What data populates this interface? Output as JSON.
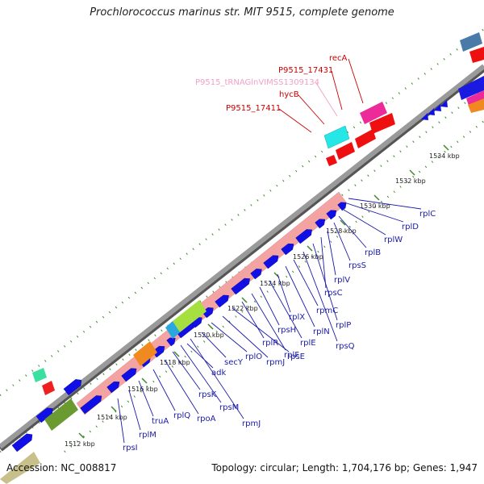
{
  "title": "Prochlorococcus marinus str. MIT 9515, complete genome",
  "footer": {
    "accession": "Accession: NC_008817",
    "summary": "Topology: circular; Length: 1,704,176 bp; Genes: 1,947"
  },
  "colors": {
    "backbone": "#8a8a8a",
    "tick": "#3a8a2a",
    "gene_forward": "#0000ee",
    "gene_reverse": "#ee0000",
    "operon": "#f2a0a0",
    "label_blue": "#1a1aaa",
    "label_red": "#cc0000",
    "label_pink": "#f0a0c8"
  },
  "bp_labels": [
    "1512 kbp",
    "1514 kbp",
    "1516 kbp",
    "1518 kbp",
    "1520 kbp",
    "1522 kbp",
    "1524 kbp",
    "1526 kbp",
    "1528 kbp",
    "1530 kbp",
    "1532 kbp",
    "1534 kbp"
  ],
  "genes_lower": [
    "rpsI",
    "rplM",
    "truA",
    "rplQ",
    "rpoA",
    "rpsK",
    "rpsM",
    "rpmJ",
    "adk",
    "secY",
    "rplO",
    "rpmJ",
    "rpsE",
    "rplR",
    "rplF",
    "rpsH",
    "rplE",
    "rplX",
    "rplN",
    "rpmC",
    "rpsQ",
    "rplP",
    "rpsC",
    "rplV",
    "rpsS",
    "rplB",
    "rplW",
    "rplD",
    "rplC"
  ],
  "genes_upper": [
    {
      "name": "recA",
      "color": "red"
    },
    {
      "name": "P9515_17431",
      "color": "red"
    },
    {
      "name": "P9515_tRNAGlnVIMSS1309134",
      "color": "pink"
    },
    {
      "name": "hycB",
      "color": "red"
    },
    {
      "name": "P9515_17411",
      "color": "red"
    }
  ]
}
